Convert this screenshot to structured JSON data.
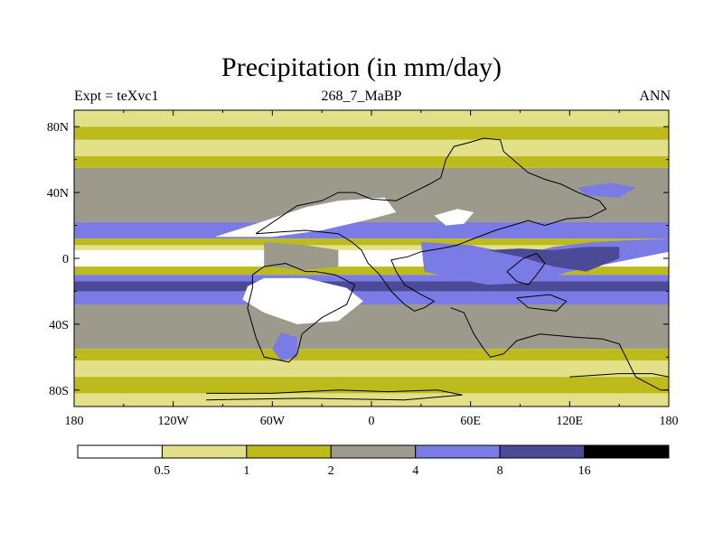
{
  "title": "Precipitation (in mm/day)",
  "subtitle_left": "Expt = teXvc1",
  "subtitle_center": "268_7_MaBP",
  "subtitle_right": "ANN",
  "lat_ticks": [
    "80N",
    "40N",
    "0",
    "40S",
    "80S"
  ],
  "lon_ticks": [
    "180",
    "120W",
    "60W",
    "0",
    "60E",
    "120E",
    "180"
  ],
  "colorbar": {
    "levels": [
      "0.5",
      "1",
      "2",
      "4",
      "8",
      "16"
    ],
    "colors": [
      "#ffffff",
      "#e3e08a",
      "#bdbb1c",
      "#9b9a8c",
      "#7b7be6",
      "#4a4a96",
      "#000000"
    ]
  },
  "bands": [
    {
      "lat": [
        90,
        80
      ],
      "color": "#e3e08a"
    },
    {
      "lat": [
        80,
        72
      ],
      "color": "#bdbb1c"
    },
    {
      "lat": [
        72,
        62
      ],
      "color": "#e3e08a"
    },
    {
      "lat": [
        62,
        55
      ],
      "color": "#bdbb1c"
    },
    {
      "lat": [
        55,
        22
      ],
      "color": "#9b9a8c"
    },
    {
      "lat": [
        22,
        12
      ],
      "color": "#7b7be6"
    },
    {
      "lat": [
        12,
        8
      ],
      "color": "#bdbb1c"
    },
    {
      "lat": [
        8,
        5
      ],
      "color": "#e3e08a"
    },
    {
      "lat": [
        5,
        -5
      ],
      "color": "#ffffff"
    },
    {
      "lat": [
        -5,
        -10
      ],
      "color": "#bdbb1c"
    },
    {
      "lat": [
        -10,
        -14
      ],
      "color": "#7b7be6"
    },
    {
      "lat": [
        -14,
        -20
      ],
      "color": "#4a4a96"
    },
    {
      "lat": [
        -20,
        -28
      ],
      "color": "#7b7be6"
    },
    {
      "lat": [
        -28,
        -55
      ],
      "color": "#9b9a8c"
    },
    {
      "lat": [
        -55,
        -62
      ],
      "color": "#bdbb1c"
    },
    {
      "lat": [
        -62,
        -72
      ],
      "color": "#e3e08a"
    },
    {
      "lat": [
        -72,
        -82
      ],
      "color": "#bdbb1c"
    },
    {
      "lat": [
        -82,
        -90
      ],
      "color": "#e3e08a"
    }
  ],
  "features": [
    {
      "name": "tropical-dry-core",
      "color": "#ffffff",
      "pts": [
        [
          -180,
          4
        ],
        [
          -130,
          3
        ],
        [
          -95,
          1
        ],
        [
          -80,
          0
        ],
        [
          -95,
          -3
        ],
        [
          -140,
          -4
        ],
        [
          -180,
          -3
        ]
      ]
    },
    {
      "name": "pacific-east-dry",
      "color": "#ffffff",
      "pts": [
        [
          150,
          2
        ],
        [
          165,
          3
        ],
        [
          180,
          2
        ],
        [
          180,
          -3
        ],
        [
          165,
          -3
        ],
        [
          150,
          -1
        ]
      ]
    },
    {
      "name": "north-dry-zone",
      "color": "#ffffff",
      "pts": [
        [
          -95,
          13
        ],
        [
          -70,
          21
        ],
        [
          -40,
          31
        ],
        [
          -20,
          35
        ],
        [
          8,
          37
        ],
        [
          15,
          28
        ],
        [
          0,
          24
        ],
        [
          -30,
          17
        ],
        [
          -60,
          13
        ]
      ]
    },
    {
      "name": "north-dry-zone-east",
      "color": "#ffffff",
      "pts": [
        [
          38,
          26
        ],
        [
          52,
          30
        ],
        [
          62,
          28
        ],
        [
          56,
          21
        ],
        [
          45,
          20
        ]
      ]
    },
    {
      "name": "south-dry-zone",
      "color": "#ffffff",
      "pts": [
        [
          -75,
          -17
        ],
        [
          -65,
          -12
        ],
        [
          -40,
          -12
        ],
        [
          -15,
          -18
        ],
        [
          -5,
          -26
        ],
        [
          -20,
          -38
        ],
        [
          -45,
          -40
        ],
        [
          -65,
          -33
        ],
        [
          -78,
          -25
        ]
      ]
    },
    {
      "name": "indian-wet-zone",
      "color": "#7b7be6",
      "pts": [
        [
          30,
          10
        ],
        [
          60,
          8
        ],
        [
          80,
          4
        ],
        [
          95,
          3
        ],
        [
          110,
          7
        ],
        [
          135,
          10
        ],
        [
          180,
          12
        ],
        [
          180,
          4
        ],
        [
          150,
          -2
        ],
        [
          120,
          -8
        ],
        [
          95,
          -15
        ],
        [
          70,
          -16
        ],
        [
          50,
          -12
        ],
        [
          32,
          -8
        ]
      ]
    },
    {
      "name": "indian-core-zone",
      "color": "#4a4a96",
      "pts": [
        [
          70,
          5
        ],
        [
          90,
          1
        ],
        [
          110,
          -5
        ],
        [
          130,
          -8
        ],
        [
          150,
          0
        ],
        [
          150,
          7
        ],
        [
          130,
          7
        ],
        [
          110,
          5
        ],
        [
          90,
          6
        ]
      ]
    },
    {
      "name": "north-wet-patch",
      "color": "#7b7be6",
      "pts": [
        [
          125,
          43
        ],
        [
          145,
          46
        ],
        [
          160,
          43
        ],
        [
          150,
          37
        ],
        [
          130,
          38
        ]
      ]
    },
    {
      "name": "south-wet-patch",
      "color": "#7b7be6",
      "pts": [
        [
          -55,
          -45
        ],
        [
          -45,
          -48
        ],
        [
          -45,
          -60
        ],
        [
          -55,
          -62
        ],
        [
          -60,
          -55
        ]
      ]
    },
    {
      "name": "tropical-moist-patch",
      "color": "#9b9a8c",
      "pts": [
        [
          -65,
          10
        ],
        [
          -40,
          8
        ],
        [
          -20,
          5
        ],
        [
          -20,
          -5
        ],
        [
          -40,
          -7
        ],
        [
          -65,
          -5
        ]
      ]
    }
  ],
  "outlines": [
    [
      [
        -70,
        15
      ],
      [
        -45,
        32
      ],
      [
        -30,
        35
      ],
      [
        -20,
        40
      ],
      [
        -10,
        40
      ],
      [
        0,
        36
      ],
      [
        15,
        35
      ],
      [
        25,
        40
      ],
      [
        35,
        45
      ],
      [
        42,
        49
      ],
      [
        45,
        60
      ],
      [
        50,
        68
      ],
      [
        58,
        70
      ],
      [
        68,
        73
      ],
      [
        78,
        72
      ],
      [
        80,
        65
      ],
      [
        88,
        58
      ],
      [
        95,
        52
      ],
      [
        105,
        48
      ],
      [
        115,
        45
      ],
      [
        125,
        40
      ],
      [
        138,
        35
      ],
      [
        142,
        30
      ],
      [
        132,
        25
      ],
      [
        118,
        24
      ],
      [
        105,
        20
      ],
      [
        95,
        23
      ],
      [
        85,
        20
      ],
      [
        75,
        17
      ],
      [
        62,
        12
      ],
      [
        52,
        8
      ],
      [
        42,
        6
      ],
      [
        30,
        4
      ],
      [
        22,
        1
      ],
      [
        12,
        -1
      ],
      [
        15,
        -8
      ],
      [
        20,
        -16
      ],
      [
        30,
        -22
      ],
      [
        38,
        -26
      ],
      [
        32,
        -30
      ],
      [
        26,
        -32
      ],
      [
        20,
        -28
      ],
      [
        12,
        -20
      ],
      [
        5,
        -10
      ],
      [
        -2,
        -3
      ],
      [
        -6,
        5
      ],
      [
        -12,
        10
      ],
      [
        -20,
        15
      ],
      [
        -40,
        17
      ],
      [
        -55,
        16
      ],
      [
        -70,
        15
      ]
    ],
    [
      [
        -72,
        -10
      ],
      [
        -65,
        -5
      ],
      [
        -52,
        -3
      ],
      [
        -40,
        -8
      ],
      [
        -34,
        -8
      ],
      [
        -22,
        -10
      ],
      [
        -10,
        -16
      ],
      [
        -15,
        -28
      ],
      [
        -30,
        -36
      ],
      [
        -42,
        -46
      ],
      [
        -45,
        -58
      ],
      [
        -50,
        -63
      ],
      [
        -65,
        -60
      ],
      [
        -70,
        -48
      ],
      [
        -75,
        -30
      ],
      [
        -72,
        -18
      ],
      [
        -72,
        -10
      ]
    ],
    [
      [
        48,
        -30
      ],
      [
        56,
        -33
      ],
      [
        62,
        -46
      ],
      [
        68,
        -55
      ],
      [
        72,
        -60
      ],
      [
        80,
        -58
      ],
      [
        88,
        -50
      ],
      [
        102,
        -46
      ],
      [
        125,
        -48
      ],
      [
        140,
        -49
      ],
      [
        150,
        -52
      ],
      [
        155,
        -62
      ],
      [
        160,
        -72
      ],
      [
        175,
        -80
      ],
      [
        180,
        -80
      ]
    ],
    [
      [
        82,
        -8
      ],
      [
        92,
        0
      ],
      [
        100,
        3
      ],
      [
        105,
        -3
      ],
      [
        100,
        -10
      ],
      [
        95,
        -16
      ],
      [
        88,
        -14
      ],
      [
        82,
        -8
      ]
    ],
    [
      [
        88,
        -24
      ],
      [
        108,
        -22
      ],
      [
        118,
        -26
      ],
      [
        112,
        -32
      ],
      [
        95,
        -30
      ],
      [
        88,
        -24
      ]
    ],
    [
      [
        -100,
        -82
      ],
      [
        -60,
        -82
      ],
      [
        -20,
        -80
      ],
      [
        10,
        -81
      ],
      [
        40,
        -80
      ],
      [
        55,
        -83
      ],
      [
        20,
        -86
      ],
      [
        -40,
        -85
      ],
      [
        -100,
        -86
      ]
    ],
    [
      [
        120,
        -72
      ],
      [
        150,
        -70
      ],
      [
        170,
        -70
      ],
      [
        180,
        -72
      ]
    ]
  ]
}
